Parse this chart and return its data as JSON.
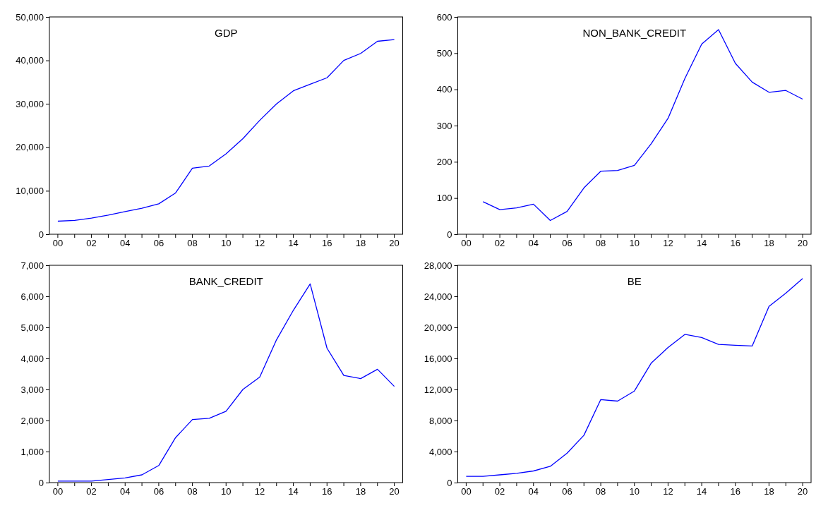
{
  "chart_data": [
    {
      "type": "line",
      "title": "GDP",
      "categories": [
        "00",
        null,
        "02",
        null,
        "04",
        null,
        "06",
        null,
        "08",
        null,
        "10",
        null,
        "12",
        null,
        "14",
        null,
        "16",
        null,
        "18",
        null,
        "20"
      ],
      "series": [
        {
          "color": "#0000ff",
          "values": [
            3000,
            3200,
            3700,
            4400,
            5200,
            6000,
            7000,
            9500,
            15200,
            15700,
            18500,
            22000,
            26200,
            30000,
            33000,
            34500,
            36000,
            40000,
            41600,
            44400,
            44800
          ]
        }
      ],
      "ylim": [
        0,
        50000
      ],
      "yticks": [
        0,
        {
          "value": 10000,
          "label": "10,000"
        },
        {
          "value": 20000,
          "label": "20,000"
        },
        {
          "value": 30000,
          "label": "30,000"
        },
        {
          "value": 40000,
          "label": "40,000"
        },
        {
          "value": 50000,
          "label": "50,000"
        }
      ]
    },
    {
      "type": "line",
      "title": "NON_BANK_CREDIT",
      "categories": [
        "00",
        null,
        "02",
        null,
        "04",
        null,
        "06",
        null,
        "08",
        null,
        "10",
        null,
        "12",
        null,
        "14",
        null,
        "16",
        null,
        "18",
        null,
        "20"
      ],
      "series": [
        {
          "color": "#0000ff",
          "values": [
            null,
            90,
            68,
            73,
            83,
            38,
            63,
            128,
            174,
            176,
            190,
            250,
            320,
            430,
            525,
            565,
            472,
            420,
            392,
            397,
            373
          ]
        }
      ],
      "ylim": [
        0,
        600
      ],
      "yticks": [
        0,
        100,
        200,
        300,
        400,
        500,
        600
      ]
    },
    {
      "type": "line",
      "title": "BANK_CREDIT",
      "categories": [
        "00",
        null,
        "02",
        null,
        "04",
        null,
        "06",
        null,
        "08",
        null,
        "10",
        null,
        "12",
        null,
        "14",
        null,
        "16",
        null,
        "18",
        null,
        "20"
      ],
      "series": [
        {
          "color": "#0000ff",
          "values": [
            50,
            50,
            50,
            100,
            150,
            250,
            550,
            1450,
            2030,
            2070,
            2300,
            3000,
            3400,
            4600,
            5550,
            6400,
            4330,
            3450,
            3350,
            3650,
            3100
          ]
        }
      ],
      "ylim": [
        0,
        7000
      ],
      "yticks": [
        0,
        {
          "value": 1000,
          "label": "1,000"
        },
        {
          "value": 2000,
          "label": "2,000"
        },
        {
          "value": 3000,
          "label": "3,000"
        },
        {
          "value": 4000,
          "label": "4,000"
        },
        {
          "value": 5000,
          "label": "5,000"
        },
        {
          "value": 6000,
          "label": "6,000"
        },
        {
          "value": 7000,
          "label": "7,000"
        }
      ]
    },
    {
      "type": "line",
      "title": "BE",
      "categories": [
        "00",
        null,
        "02",
        null,
        "04",
        null,
        "06",
        null,
        "08",
        null,
        "10",
        null,
        "12",
        null,
        "14",
        null,
        "16",
        null,
        "18",
        null,
        "20"
      ],
      "series": [
        {
          "color": "#0000ff",
          "values": [
            800,
            800,
            1000,
            1200,
            1500,
            2100,
            3800,
            6100,
            10700,
            10500,
            11800,
            15400,
            17400,
            19100,
            18700,
            17800,
            17700,
            17600,
            22700,
            24400,
            26300
          ]
        }
      ],
      "ylim": [
        0,
        28000
      ],
      "yticks": [
        0,
        {
          "value": 4000,
          "label": "4,000"
        },
        {
          "value": 8000,
          "label": "8,000"
        },
        {
          "value": 12000,
          "label": "12,000"
        },
        {
          "value": 16000,
          "label": "16,000"
        },
        {
          "value": 20000,
          "label": "20,000"
        },
        {
          "value": 24000,
          "label": "24,000"
        },
        {
          "value": 28000,
          "label": "28,000"
        }
      ]
    }
  ]
}
